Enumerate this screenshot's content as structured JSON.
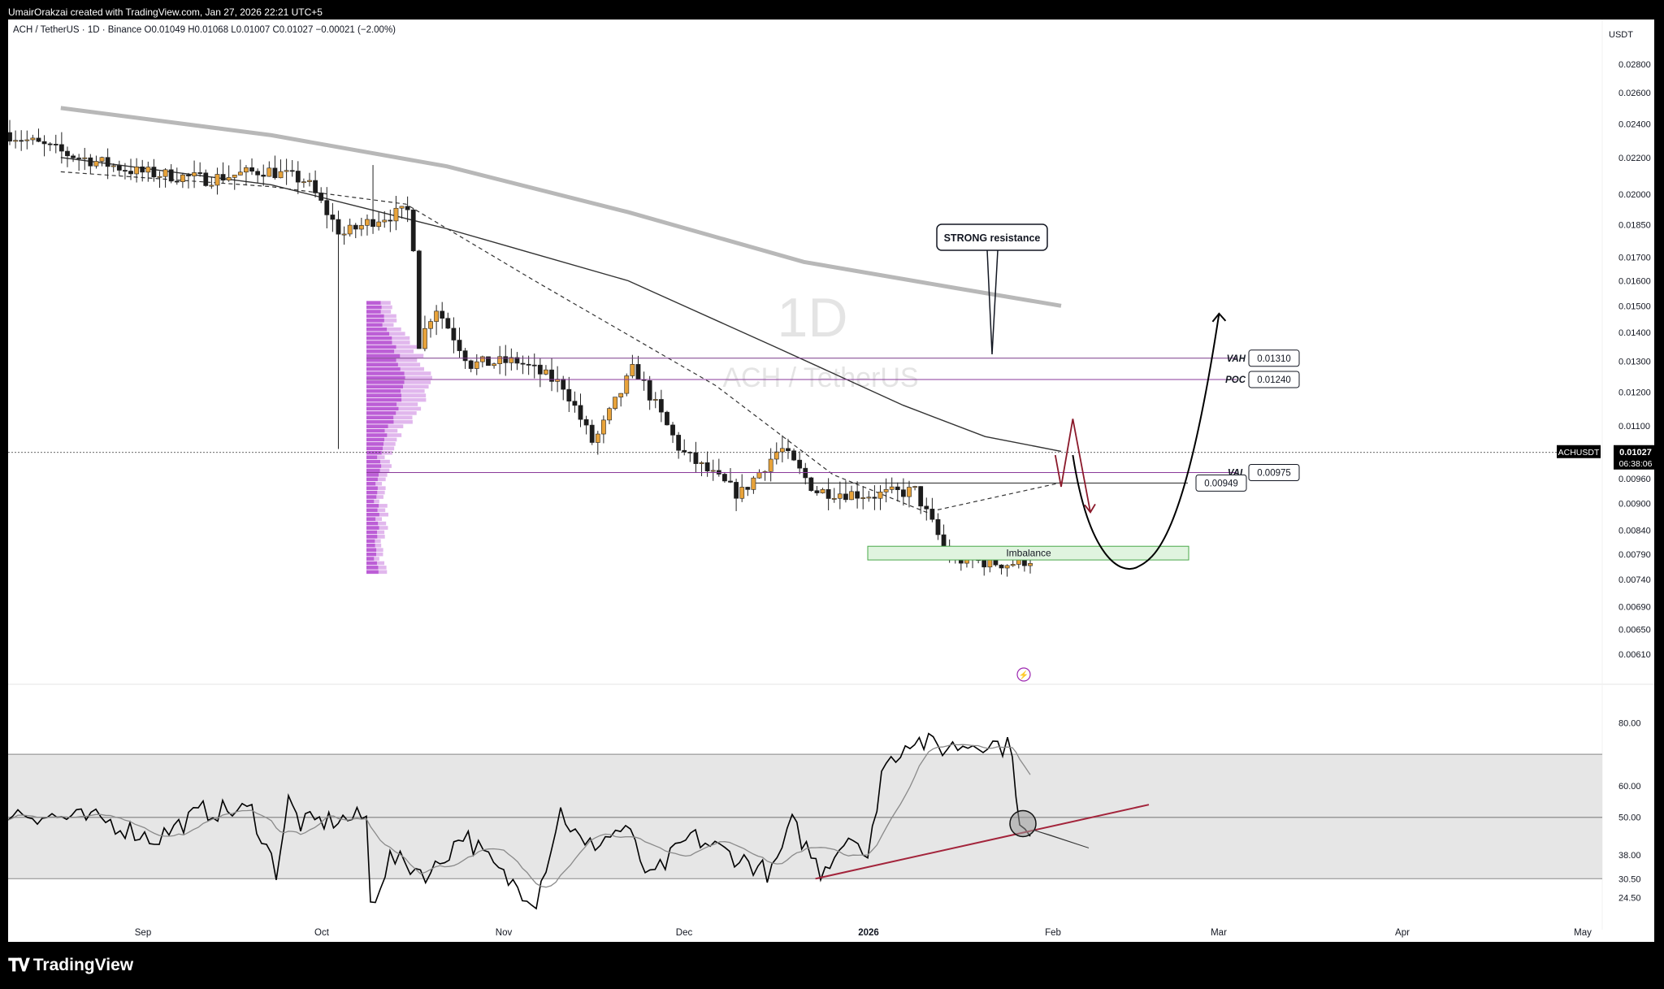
{
  "header": {
    "attribution": "UmairOrakzai created with TradingView.com, Jan 27, 2026 22:21 UTC+5",
    "symbol_line": "ACH / TetherUS · 1D · Binance",
    "ohlc": {
      "open_label": "O",
      "open": "0.01049",
      "high_label": "H",
      "high": "0.01068",
      "low_label": "L",
      "low": "0.01007",
      "close_label": "C",
      "close": "0.01027",
      "change": "−0.00021 (−2.00%)"
    }
  },
  "footer": {
    "brand": "TradingView",
    "logo_icon": "tradingview-logo-icon"
  },
  "watermark": {
    "interval": "1D",
    "pair": "ACH / TetherUS"
  },
  "price_axis": {
    "currency": "USDT",
    "ticks": [
      "0.02800",
      "0.02600",
      "0.02400",
      "0.02200",
      "0.02000",
      "0.01850",
      "0.01700",
      "0.01600",
      "0.01500",
      "0.01400",
      "0.01300",
      "0.01200",
      "0.01100",
      "0.00960",
      "0.00900",
      "0.00840",
      "0.00790",
      "0.00740",
      "0.00690",
      "0.00650",
      "0.00610"
    ],
    "current_symbol": "ACHUSDT",
    "current_price": "0.01027",
    "countdown": "06:38:06",
    "scale": "log"
  },
  "rsi_axis": {
    "ticks": [
      "80.00",
      "60.00",
      "50.00",
      "38.00",
      "30.50",
      "24.50"
    ]
  },
  "time_axis": {
    "labels": [
      "Sep",
      "Oct",
      "Nov",
      "Dec",
      "2026",
      "Feb",
      "Mar",
      "Apr",
      "May"
    ],
    "bold_label": "2026"
  },
  "levels": {
    "vah": {
      "tag": "VAH",
      "value": "0.01310",
      "price": 0.0131
    },
    "poc": {
      "tag": "POC",
      "value": "0.01240",
      "price": 0.0124
    },
    "val": {
      "tag": "VAL",
      "value": "0.00975",
      "price": 0.00975
    },
    "support": {
      "value": "0.00949",
      "price": 0.00949
    }
  },
  "annotations": {
    "resistance_label": "STRONG resistance",
    "imbalance_label": "Imbalance",
    "imbalance_zone": {
      "low": 0.00778,
      "high": 0.00806
    },
    "event_icon": "lightning-icon",
    "path_color": "#000000",
    "short_path_color": "#8b1a2b",
    "rsi_trendline_color": "#a3243b"
  },
  "colors": {
    "bull": "#e8a33a",
    "bear": "#1c1c1c",
    "profile": "#b54cd1",
    "sma_long": "#b8b8b8",
    "ema_mid": "#333333",
    "rsi_band": "#e6e6e6"
  },
  "chart_data": {
    "type": "candlestick",
    "price_scale": "log",
    "ylim": [
      0.0058,
      0.0295
    ],
    "series": [
      {
        "name": "Long MA (gray)",
        "points": [
          [
            "2025-08-10",
            0.025
          ],
          [
            "2025-09-15",
            0.0233
          ],
          [
            "2025-10-15",
            0.0215
          ],
          [
            "2025-11-15",
            0.0191
          ],
          [
            "2025-12-15",
            0.0168
          ],
          [
            "2026-01-10",
            0.0157
          ],
          [
            "2026-01-28",
            0.015
          ]
        ]
      },
      {
        "name": "Mid MA (solid)",
        "points": [
          [
            "2025-08-10",
            0.022
          ],
          [
            "2025-09-15",
            0.0205
          ],
          [
            "2025-10-15",
            0.0183
          ],
          [
            "2025-11-15",
            0.016
          ],
          [
            "2025-12-10",
            0.0135
          ],
          [
            "2026-01-01",
            0.0116
          ],
          [
            "2026-01-15",
            0.0107
          ],
          [
            "2026-01-28",
            0.0103
          ]
        ]
      },
      {
        "name": "Short MA (dashed)",
        "points": [
          [
            "2025-08-10",
            0.0212
          ],
          [
            "2025-09-15",
            0.0204
          ],
          [
            "2025-10-08",
            0.0195
          ],
          [
            "2025-10-30",
            0.016
          ],
          [
            "2025-11-30",
            0.0122
          ],
          [
            "2025-12-20",
            0.0097
          ],
          [
            "2026-01-05",
            0.0088
          ],
          [
            "2026-01-28",
            0.0095
          ]
        ]
      }
    ],
    "candles_summary": {
      "first_date": "2025-08-10",
      "last_date": "2026-01-27",
      "last_close": 0.01027,
      "period_low": 0.0063,
      "period_high": 0.0245
    },
    "volume_profile": {
      "range": [
        0.0075,
        0.0152
      ],
      "poc": 0.0124
    },
    "projection": {
      "short_path": [
        [
          "2026-01-27",
          0.0102
        ],
        [
          "2026-01-28",
          0.0094
        ],
        [
          "2026-01-30",
          0.0112
        ],
        [
          "2026-02-02",
          0.0088
        ]
      ],
      "long_path": [
        [
          "2026-01-30",
          0.0102
        ],
        [
          "2026-02-10",
          0.0078
        ],
        [
          "2026-02-18",
          0.0081
        ],
        [
          "2026-02-24",
          0.0147
        ]
      ]
    },
    "rsi": {
      "ylim": [
        20,
        85
      ],
      "band": [
        30.5,
        70
      ],
      "midline": 50,
      "last_value": 48,
      "trendline": [
        [
          "2025-12-17",
          30.5
        ],
        [
          "2026-02-12",
          54
        ]
      ]
    }
  }
}
